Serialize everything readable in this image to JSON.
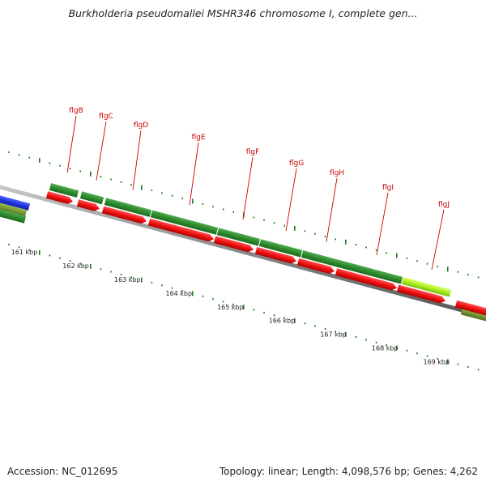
{
  "title": "Burkholderia pseudomallei MSHR346 chromosome I, complete gen...",
  "footer": {
    "accession": "Accession: NC_012695",
    "topology": "Topology: linear; Length: 4,098,576 bp; Genes: 4,262"
  },
  "colors": {
    "backbone": "#888888",
    "gene_strand": "#2e8b2e",
    "cds_arrow": "#ee1111",
    "label": "#cc0000",
    "tick": "#1a7a1a",
    "highlight": "#aaee22",
    "other_feature": "#2233dd",
    "olive_feature": "#779933"
  },
  "kbp_ticks": [
    "161 kbp",
    "162 kbp",
    "163 kbp",
    "164 kbp",
    "165 kbp",
    "166 kbp",
    "167 kbp",
    "168 kbp",
    "169 kbp"
  ],
  "genes": [
    {
      "name": "flgB"
    },
    {
      "name": "flgC"
    },
    {
      "name": "flgD"
    },
    {
      "name": "flgE"
    },
    {
      "name": "flgF"
    },
    {
      "name": "flgG"
    },
    {
      "name": "flgH"
    },
    {
      "name": "flgI"
    },
    {
      "name": "flgJ"
    }
  ]
}
